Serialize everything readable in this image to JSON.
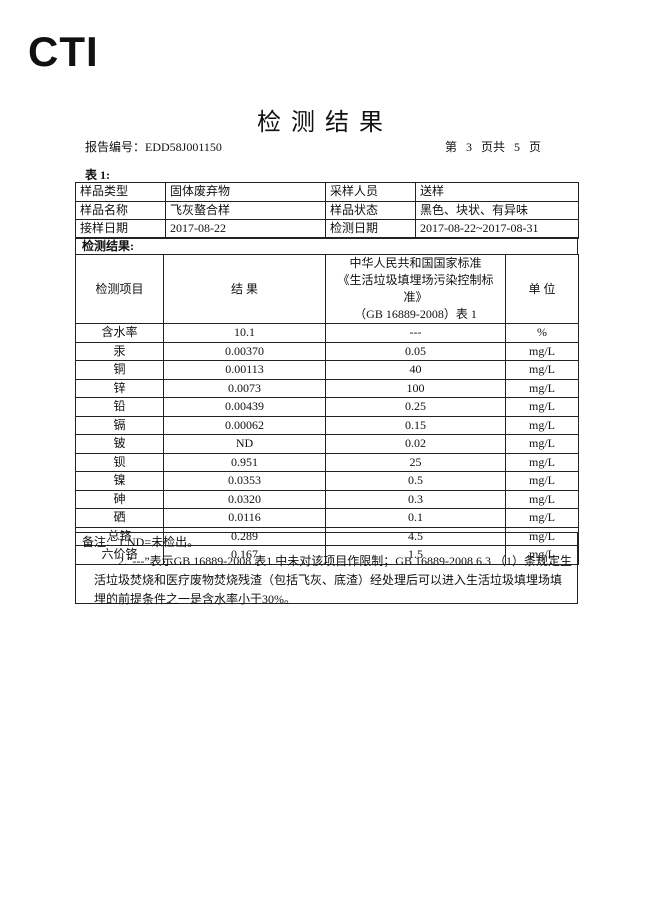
{
  "header": {
    "logo": "CTI",
    "title": "检测结果",
    "report_no": "报告编号：EDD58J001150",
    "page": "第 3 页共 5 页"
  },
  "table1": {
    "caption": "表 1:",
    "rows": [
      [
        "样品类型",
        "固体废弃物",
        "采样人员",
        "送样"
      ],
      [
        "样品名称",
        "飞灰螯合样",
        "样品状态",
        "黑色、块状、有异味"
      ],
      [
        "接样日期",
        "2017-08-22",
        "检测日期",
        "2017-08-22~2017-08-31"
      ]
    ]
  },
  "results": {
    "caption": "检测结果:",
    "headers": {
      "item": "检测项目",
      "result": "结 果",
      "standard": [
        "中华人民共和国国家标准",
        "《生活垃圾填埋场污染控制标准》",
        "（GB 16889-2008）表 1"
      ],
      "unit": "单 位"
    },
    "rows": [
      [
        "含水率",
        "10.1",
        "---",
        "%"
      ],
      [
        "汞",
        "0.00370",
        "0.05",
        "mg/L"
      ],
      [
        "铜",
        "0.00113",
        "40",
        "mg/L"
      ],
      [
        "锌",
        "0.0073",
        "100",
        "mg/L"
      ],
      [
        "铅",
        "0.00439",
        "0.25",
        "mg/L"
      ],
      [
        "镉",
        "0.00062",
        "0.15",
        "mg/L"
      ],
      [
        "铍",
        "ND",
        "0.02",
        "mg/L"
      ],
      [
        "钡",
        "0.951",
        "25",
        "mg/L"
      ],
      [
        "镍",
        "0.0353",
        "0.5",
        "mg/L"
      ],
      [
        "砷",
        "0.0320",
        "0.3",
        "mg/L"
      ],
      [
        "硒",
        "0.0116",
        "0.1",
        "mg/L"
      ],
      [
        "总铬",
        "0.289",
        "4.5",
        "mg/L"
      ],
      [
        "六价铬",
        "0.167",
        "1.5",
        "mg/L"
      ]
    ]
  },
  "notes": {
    "label": "备注:",
    "items": [
      "1.ND=未检出。",
      "2.“---”表示GB 16889-2008 表1 中未对该项目作限制；GB 16889-2008 6.3 （1）条规定生活垃圾焚烧和医疗废物焚烧残渣（包括飞灰、底渣）经处理后可以进入生活垃圾填埋场填埋的前提条件之一是含水率小于30%。"
    ]
  }
}
